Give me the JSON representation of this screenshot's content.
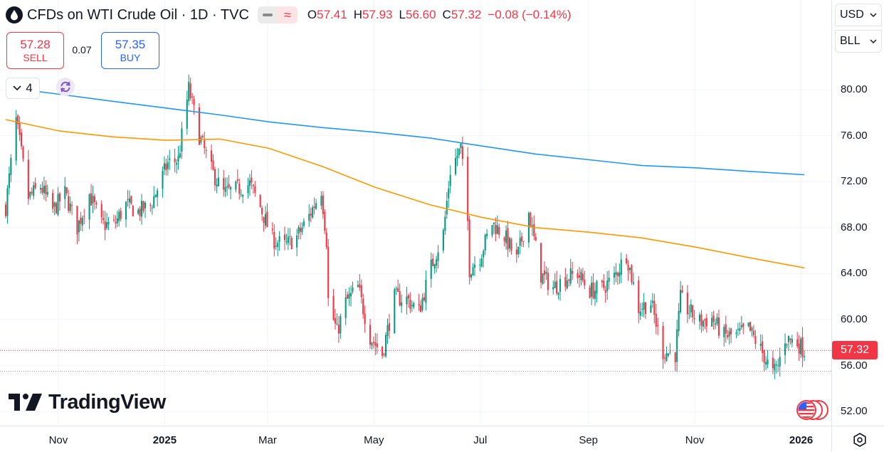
{
  "header": {
    "title": "CFDs on WTI Crude Oil · 1D · TVC",
    "ohlc": [
      {
        "key": "O",
        "value": "57.41"
      },
      {
        "key": "H",
        "value": "57.93"
      },
      {
        "key": "L",
        "value": "56.60"
      },
      {
        "key": "C",
        "value": "57.32"
      },
      {
        "key": "",
        "value": "−0.08 (−0.14%)"
      }
    ],
    "mode_pill_left_icon": "minus-icon",
    "mode_pill_right_icon": "wave-icon"
  },
  "trade": {
    "sell_price": "57.28",
    "sell_label": "SELL",
    "spread": "0.07",
    "buy_price": "57.35",
    "buy_label": "BUY"
  },
  "indicators": {
    "count": "4"
  },
  "scale": {
    "currency": "USD",
    "unit": "BLL"
  },
  "price_axis_labels": [
    "80.00",
    "76.00",
    "72.00",
    "68.00",
    "64.00",
    "60.00",
    "56.00",
    "52.00"
  ],
  "time_axis_labels": [
    {
      "text": "Nov",
      "bold": false
    },
    {
      "text": "2025",
      "bold": true
    },
    {
      "text": "Mar",
      "bold": false
    },
    {
      "text": "May",
      "bold": false
    },
    {
      "text": "Jul",
      "bold": false
    },
    {
      "text": "Sep",
      "bold": false
    },
    {
      "text": "Nov",
      "bold": false
    },
    {
      "text": "2026",
      "bold": true
    }
  ],
  "last_price": "57.32",
  "logo_text": "TradingView",
  "colors": {
    "up": "#089981",
    "down": "#f23645",
    "ma_long": "#2196f3",
    "ma_short": "#ff9800",
    "grid": "#f0f3fa"
  },
  "chart_data": {
    "type": "candlestick",
    "symbol": "CFDs on WTI Crude Oil",
    "interval": "1D",
    "ylim": [
      50.8,
      84.0
    ],
    "y_ticks": [
      52,
      56,
      60,
      64,
      68,
      72,
      76,
      80
    ],
    "price_line": 57.32,
    "support_line": 55.5,
    "close_path": [
      [
        "2024-10-01",
        69.8
      ],
      [
        "2024-10-07",
        77.3
      ],
      [
        "2024-10-14",
        70.6
      ],
      [
        "2024-10-21",
        71.6
      ],
      [
        "2024-10-28",
        69.5
      ],
      [
        "2024-11-04",
        71.0
      ],
      [
        "2024-11-11",
        68.0
      ],
      [
        "2024-11-18",
        70.9
      ],
      [
        "2024-11-25",
        68.3
      ],
      [
        "2024-12-02",
        68.2
      ],
      [
        "2024-12-09",
        70.0
      ],
      [
        "2024-12-16",
        69.4
      ],
      [
        "2024-12-23",
        69.9
      ],
      [
        "2025-01-02",
        73.6
      ],
      [
        "2025-01-08",
        73.9
      ],
      [
        "2025-01-14",
        80.1
      ],
      [
        "2025-01-20",
        76.0
      ],
      [
        "2025-01-27",
        73.0
      ],
      [
        "2025-02-03",
        71.0
      ],
      [
        "2025-02-10",
        71.3
      ],
      [
        "2025-02-18",
        71.8
      ],
      [
        "2025-02-24",
        69.8
      ],
      [
        "2025-03-03",
        67.0
      ],
      [
        "2025-03-10",
        66.4
      ],
      [
        "2025-03-17",
        67.2
      ],
      [
        "2025-03-24",
        69.0
      ],
      [
        "2025-03-31",
        71.3
      ],
      [
        "2025-04-03",
        66.9
      ],
      [
        "2025-04-04",
        61.7
      ],
      [
        "2025-04-09",
        58.9
      ],
      [
        "2025-04-14",
        61.5
      ],
      [
        "2025-04-21",
        62.8
      ],
      [
        "2025-04-28",
        58.5
      ],
      [
        "2025-05-05",
        57.0
      ],
      [
        "2025-05-12",
        61.9
      ],
      [
        "2025-05-19",
        61.8
      ],
      [
        "2025-05-26",
        60.7
      ],
      [
        "2025-06-02",
        64.6
      ],
      [
        "2025-06-09",
        67.5
      ],
      [
        "2025-06-13",
        73.0
      ],
      [
        "2025-06-19",
        74.9
      ],
      [
        "2025-06-23",
        68.5
      ],
      [
        "2025-06-24",
        64.4
      ],
      [
        "2025-06-30",
        65.5
      ],
      [
        "2025-07-07",
        68.4
      ],
      [
        "2025-07-14",
        67.3
      ],
      [
        "2025-07-21",
        65.2
      ],
      [
        "2025-07-28",
        69.3
      ],
      [
        "2025-08-04",
        63.9
      ],
      [
        "2025-08-11",
        62.8
      ],
      [
        "2025-08-18",
        63.6
      ],
      [
        "2025-08-25",
        64.0
      ],
      [
        "2025-09-01",
        62.5
      ],
      [
        "2025-09-08",
        62.7
      ],
      [
        "2025-09-15",
        63.7
      ],
      [
        "2025-09-22",
        65.7
      ],
      [
        "2025-09-29",
        61.0
      ],
      [
        "2025-10-06",
        61.5
      ],
      [
        "2025-10-13",
        57.2
      ],
      [
        "2025-10-20",
        57.0
      ],
      [
        "2025-10-23",
        61.8
      ],
      [
        "2025-10-27",
        60.9
      ],
      [
        "2025-11-03",
        59.8
      ],
      [
        "2025-11-10",
        60.1
      ],
      [
        "2025-11-17",
        58.6
      ],
      [
        "2025-11-24",
        58.6
      ],
      [
        "2025-12-01",
        59.2
      ],
      [
        "2025-12-08",
        57.4
      ],
      [
        "2025-12-15",
        55.3
      ],
      [
        "2025-12-18",
        56.0
      ],
      [
        "2025-12-22",
        58.4
      ],
      [
        "2025-12-29",
        58.0
      ],
      [
        "2026-01-02",
        57.32
      ]
    ],
    "ma_long_path": [
      [
        "2024-10-01",
        80.2
      ],
      [
        "2024-11-01",
        79.6
      ],
      [
        "2024-12-01",
        79.0
      ],
      [
        "2025-01-01",
        78.4
      ],
      [
        "2025-02-01",
        77.8
      ],
      [
        "2025-03-01",
        77.2
      ],
      [
        "2025-04-01",
        76.7
      ],
      [
        "2025-05-01",
        76.3
      ],
      [
        "2025-06-01",
        75.8
      ],
      [
        "2025-07-01",
        75.1
      ],
      [
        "2025-08-01",
        74.4
      ],
      [
        "2025-09-01",
        73.9
      ],
      [
        "2025-10-01",
        73.4
      ],
      [
        "2025-11-01",
        73.2
      ],
      [
        "2025-12-01",
        72.9
      ],
      [
        "2026-01-02",
        72.6
      ]
    ],
    "ma_short_path": [
      [
        "2024-10-01",
        77.4
      ],
      [
        "2024-11-01",
        76.4
      ],
      [
        "2024-12-01",
        75.9
      ],
      [
        "2025-01-01",
        75.6
      ],
      [
        "2025-02-01",
        75.7
      ],
      [
        "2025-03-01",
        74.9
      ],
      [
        "2025-04-01",
        73.3
      ],
      [
        "2025-05-01",
        71.5
      ],
      [
        "2025-06-01",
        70.0
      ],
      [
        "2025-07-01",
        68.9
      ],
      [
        "2025-08-01",
        68.0
      ],
      [
        "2025-09-01",
        67.6
      ],
      [
        "2025-10-01",
        67.1
      ],
      [
        "2025-11-01",
        66.3
      ],
      [
        "2025-12-01",
        65.4
      ],
      [
        "2026-01-02",
        64.5
      ]
    ]
  }
}
